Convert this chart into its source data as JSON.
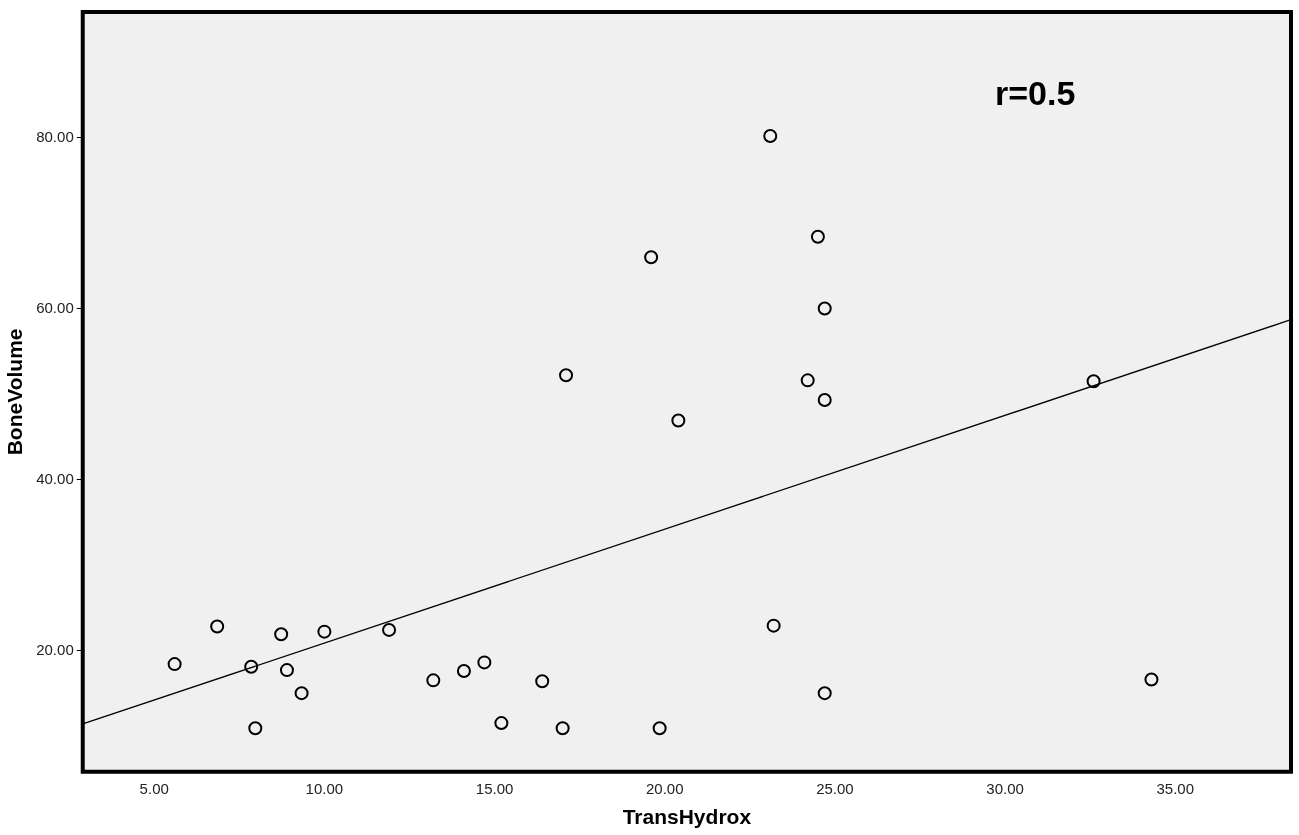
{
  "chart_data": {
    "type": "scatter",
    "xlabel": "TransHydrox",
    "ylabel": "BoneVolume",
    "annotations": [
      "r=0.5"
    ],
    "xlim": [
      2.9,
      38.4
    ],
    "ylim": [
      5.8,
      94.7
    ],
    "xticks": [
      {
        "value": 5,
        "label": "5.00"
      },
      {
        "value": 10,
        "label": "10.00"
      },
      {
        "value": 15,
        "label": "15.00"
      },
      {
        "value": 20,
        "label": "20.00"
      },
      {
        "value": 25,
        "label": "25.00"
      },
      {
        "value": 30,
        "label": "30.00"
      },
      {
        "value": 35,
        "label": "35.00"
      }
    ],
    "yticks": [
      {
        "value": 20,
        "label": "20.00"
      },
      {
        "value": 40,
        "label": "40.00"
      },
      {
        "value": 60,
        "label": "60.00"
      },
      {
        "value": 80,
        "label": "80.00"
      }
    ],
    "grid": false,
    "legend": false,
    "marker": "circle",
    "series": [
      {
        "type": "scatter",
        "color": "#000000",
        "x": [
          5.6,
          6.85,
          7.85,
          7.97,
          8.73,
          8.9,
          9.33,
          10.0,
          11.9,
          13.2,
          14.1,
          14.7,
          15.2,
          16.4,
          17.0,
          17.1,
          19.6,
          19.85,
          20.4,
          23.1,
          23.2,
          24.2,
          24.5,
          24.7,
          24.7,
          24.7,
          32.6,
          34.3
        ],
        "values": [
          18.4,
          22.8,
          18.1,
          10.9,
          21.9,
          17.7,
          15.0,
          22.2,
          22.4,
          16.5,
          17.6,
          18.6,
          11.5,
          16.4,
          10.9,
          52.2,
          66.0,
          10.9,
          46.9,
          80.2,
          22.9,
          51.6,
          68.4,
          60.0,
          49.3,
          15.0,
          51.5,
          16.6
        ]
      },
      {
        "type": "line",
        "color": "#000000",
        "marker": "none",
        "x": [
          2.9,
          38.4
        ],
        "values": [
          11.4,
          58.7
        ]
      }
    ]
  }
}
